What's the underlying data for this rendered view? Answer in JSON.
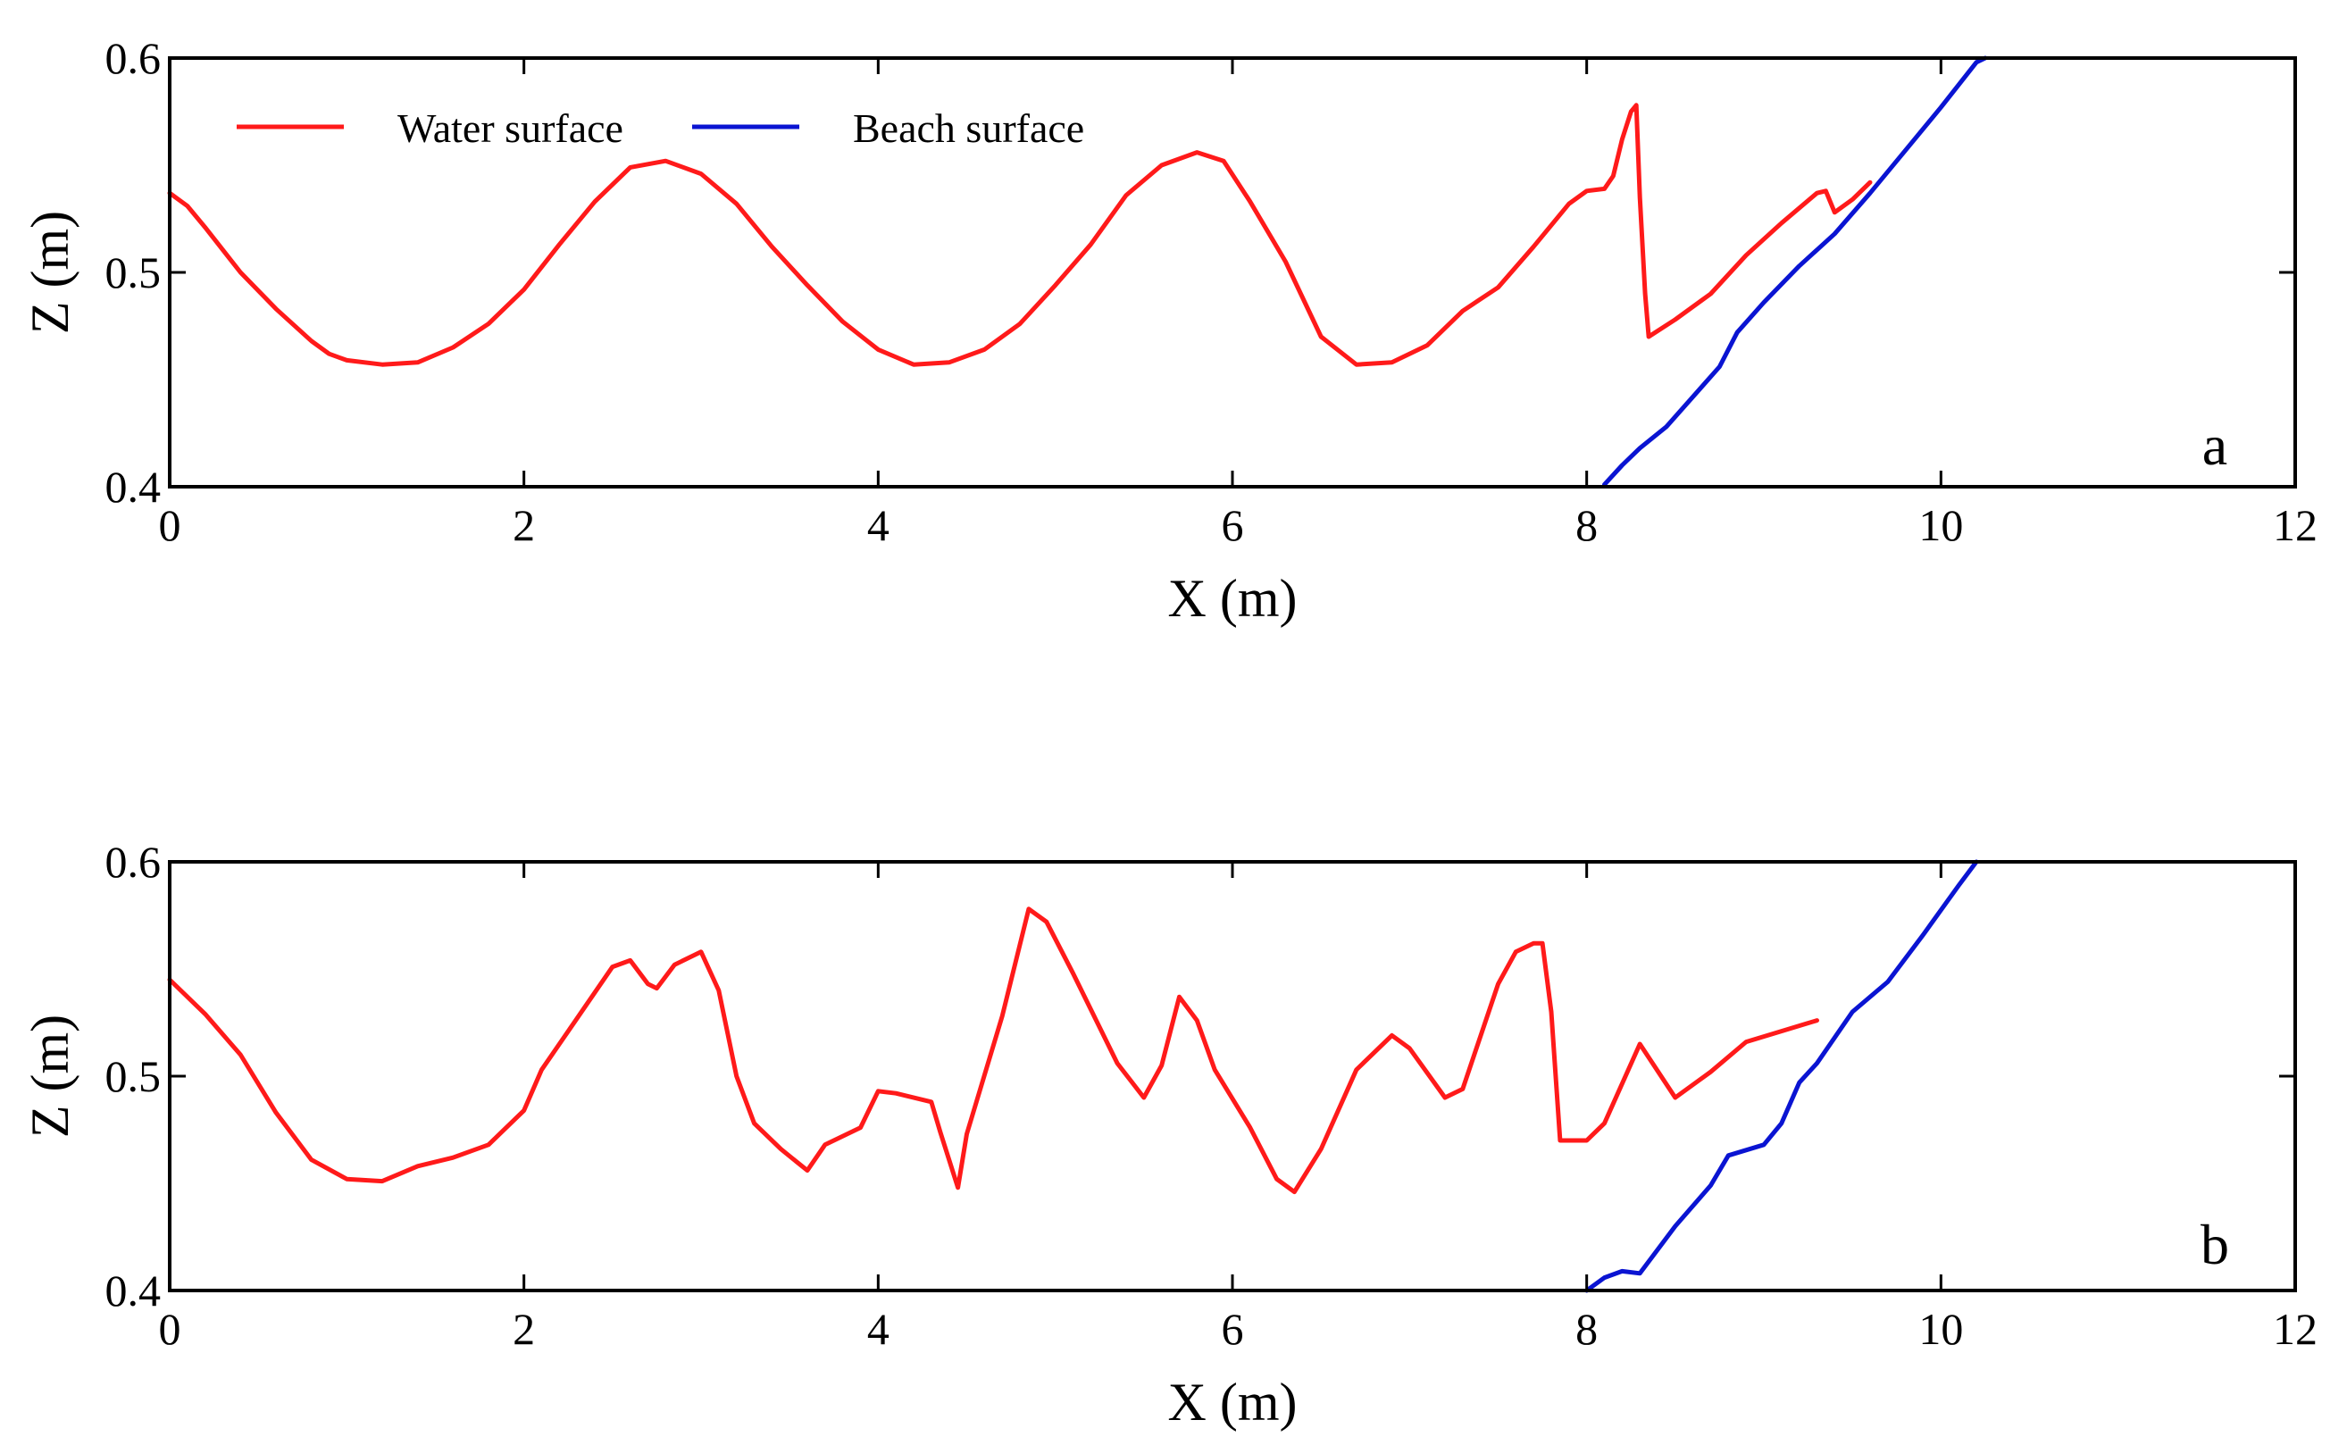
{
  "chart_data": [
    {
      "type": "line",
      "panel_label": "a",
      "xlabel": "X (m)",
      "ylabel": "Z (m)",
      "xlim": [
        0,
        12
      ],
      "ylim": [
        0.4,
        0.6
      ],
      "x_ticks": [
        "0",
        "2",
        "4",
        "6",
        "8",
        "10",
        "12"
      ],
      "y_ticks": [
        "0.4",
        "0.5",
        "0.6"
      ],
      "legend": {
        "placement": "top-left",
        "entries": [
          "Water surface",
          "Beach surface"
        ]
      },
      "series": [
        {
          "name": "Water surface",
          "color": "#ff1a1a",
          "points": [
            [
              0,
              0.537
            ],
            [
              0.1,
              0.531
            ],
            [
              0.2,
              0.521
            ],
            [
              0.4,
              0.5
            ],
            [
              0.6,
              0.483
            ],
            [
              0.8,
              0.468
            ],
            [
              0.9,
              0.462
            ],
            [
              1.0,
              0.459
            ],
            [
              1.2,
              0.457
            ],
            [
              1.4,
              0.458
            ],
            [
              1.6,
              0.465
            ],
            [
              1.8,
              0.476
            ],
            [
              2.0,
              0.492
            ],
            [
              2.2,
              0.513
            ],
            [
              2.4,
              0.533
            ],
            [
              2.6,
              0.549
            ],
            [
              2.8,
              0.552
            ],
            [
              3.0,
              0.546
            ],
            [
              3.2,
              0.532
            ],
            [
              3.4,
              0.512
            ],
            [
              3.6,
              0.494
            ],
            [
              3.8,
              0.477
            ],
            [
              4.0,
              0.464
            ],
            [
              4.2,
              0.457
            ],
            [
              4.4,
              0.458
            ],
            [
              4.6,
              0.464
            ],
            [
              4.8,
              0.476
            ],
            [
              5.0,
              0.494
            ],
            [
              5.2,
              0.513
            ],
            [
              5.4,
              0.536
            ],
            [
              5.6,
              0.55
            ],
            [
              5.8,
              0.556
            ],
            [
              5.95,
              0.552
            ],
            [
              6.1,
              0.533
            ],
            [
              6.3,
              0.505
            ],
            [
              6.5,
              0.47
            ],
            [
              6.7,
              0.457
            ],
            [
              6.9,
              0.458
            ],
            [
              7.1,
              0.466
            ],
            [
              7.3,
              0.482
            ],
            [
              7.5,
              0.493
            ],
            [
              7.7,
              0.512
            ],
            [
              7.9,
              0.532
            ],
            [
              8.0,
              0.538
            ],
            [
              8.1,
              0.539
            ],
            [
              8.15,
              0.545
            ],
            [
              8.2,
              0.562
            ],
            [
              8.25,
              0.575
            ],
            [
              8.28,
              0.578
            ],
            [
              8.3,
              0.535
            ],
            [
              8.33,
              0.49
            ],
            [
              8.35,
              0.47
            ],
            [
              8.5,
              0.478
            ],
            [
              8.7,
              0.49
            ],
            [
              8.9,
              0.508
            ],
            [
              9.1,
              0.523
            ],
            [
              9.3,
              0.537
            ],
            [
              9.35,
              0.538
            ],
            [
              9.4,
              0.528
            ],
            [
              9.5,
              0.534
            ],
            [
              9.6,
              0.542
            ]
          ]
        },
        {
          "name": "Beach surface",
          "color": "#0a14d2",
          "points": [
            [
              8.1,
              0.401
            ],
            [
              8.2,
              0.41
            ],
            [
              8.3,
              0.418
            ],
            [
              8.45,
              0.428
            ],
            [
              8.6,
              0.442
            ],
            [
              8.75,
              0.456
            ],
            [
              8.85,
              0.472
            ],
            [
              9.0,
              0.486
            ],
            [
              9.2,
              0.503
            ],
            [
              9.4,
              0.518
            ],
            [
              9.6,
              0.537
            ],
            [
              9.8,
              0.557
            ],
            [
              10.0,
              0.577
            ],
            [
              10.2,
              0.598
            ],
            [
              10.25,
              0.6
            ]
          ]
        }
      ]
    },
    {
      "type": "line",
      "panel_label": "b",
      "xlabel": "X (m)",
      "ylabel": "Z (m)",
      "xlim": [
        0,
        12
      ],
      "ylim": [
        0.4,
        0.6
      ],
      "x_ticks": [
        "0",
        "2",
        "4",
        "6",
        "8",
        "10",
        "12"
      ],
      "y_ticks": [
        "0.4",
        "0.5",
        "0.6"
      ],
      "series": [
        {
          "name": "Water surface",
          "color": "#ff1a1a",
          "points": [
            [
              0,
              0.545
            ],
            [
              0.2,
              0.529
            ],
            [
              0.4,
              0.51
            ],
            [
              0.6,
              0.483
            ],
            [
              0.8,
              0.461
            ],
            [
              1.0,
              0.452
            ],
            [
              1.2,
              0.451
            ],
            [
              1.4,
              0.458
            ],
            [
              1.6,
              0.462
            ],
            [
              1.8,
              0.468
            ],
            [
              2.0,
              0.484
            ],
            [
              2.1,
              0.503
            ],
            [
              2.3,
              0.527
            ],
            [
              2.5,
              0.551
            ],
            [
              2.6,
              0.554
            ],
            [
              2.7,
              0.543
            ],
            [
              2.75,
              0.541
            ],
            [
              2.85,
              0.552
            ],
            [
              3.0,
              0.558
            ],
            [
              3.1,
              0.54
            ],
            [
              3.2,
              0.5
            ],
            [
              3.3,
              0.478
            ],
            [
              3.45,
              0.466
            ],
            [
              3.6,
              0.456
            ],
            [
              3.7,
              0.468
            ],
            [
              3.9,
              0.476
            ],
            [
              4.0,
              0.493
            ],
            [
              4.1,
              0.492
            ],
            [
              4.3,
              0.488
            ],
            [
              4.35,
              0.474
            ],
            [
              4.45,
              0.448
            ],
            [
              4.5,
              0.473
            ],
            [
              4.7,
              0.528
            ],
            [
              4.85,
              0.578
            ],
            [
              4.95,
              0.572
            ],
            [
              5.1,
              0.548
            ],
            [
              5.35,
              0.506
            ],
            [
              5.5,
              0.49
            ],
            [
              5.6,
              0.505
            ],
            [
              5.7,
              0.537
            ],
            [
              5.8,
              0.526
            ],
            [
              5.9,
              0.503
            ],
            [
              6.1,
              0.476
            ],
            [
              6.25,
              0.452
            ],
            [
              6.35,
              0.446
            ],
            [
              6.5,
              0.466
            ],
            [
              6.7,
              0.503
            ],
            [
              6.9,
              0.519
            ],
            [
              7.0,
              0.513
            ],
            [
              7.2,
              0.49
            ],
            [
              7.3,
              0.494
            ],
            [
              7.5,
              0.543
            ],
            [
              7.6,
              0.558
            ],
            [
              7.7,
              0.562
            ],
            [
              7.75,
              0.562
            ],
            [
              7.8,
              0.53
            ],
            [
              7.85,
              0.47
            ],
            [
              8.0,
              0.47
            ],
            [
              8.1,
              0.478
            ],
            [
              8.3,
              0.515
            ],
            [
              8.5,
              0.49
            ],
            [
              8.7,
              0.502
            ],
            [
              8.9,
              0.516
            ],
            [
              9.1,
              0.521
            ],
            [
              9.3,
              0.526
            ]
          ]
        },
        {
          "name": "Beach surface",
          "color": "#0a14d2",
          "points": [
            [
              8.0,
              0.4
            ],
            [
              8.1,
              0.406
            ],
            [
              8.2,
              0.409
            ],
            [
              8.3,
              0.408
            ],
            [
              8.5,
              0.43
            ],
            [
              8.7,
              0.449
            ],
            [
              8.8,
              0.463
            ],
            [
              9.0,
              0.468
            ],
            [
              9.1,
              0.478
            ],
            [
              9.2,
              0.497
            ],
            [
              9.3,
              0.506
            ],
            [
              9.5,
              0.53
            ],
            [
              9.7,
              0.544
            ],
            [
              9.9,
              0.566
            ],
            [
              10.1,
              0.589
            ],
            [
              10.2,
              0.6
            ]
          ]
        }
      ]
    }
  ]
}
